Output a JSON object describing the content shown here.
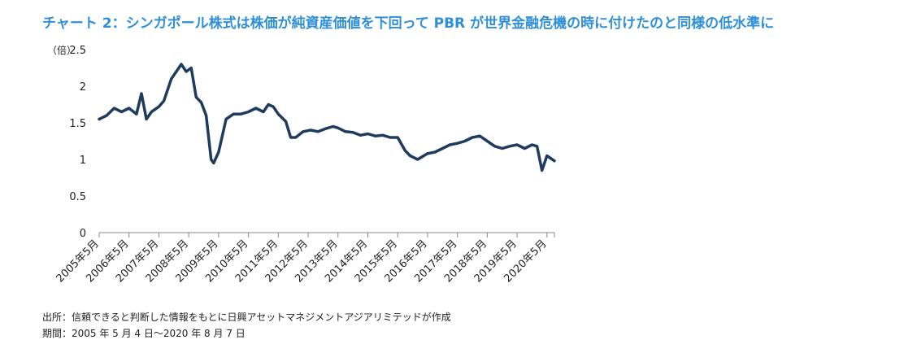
{
  "title": "チャート 2：シンガポール株式は株価が純資産価値を下回って PBR が世界金融危機の時に付けたのと同様の低水準に",
  "footer": {
    "source": "出所：信頼できると判断した情報をもとに日興アセットマネジメントアジアリミテッドが作成",
    "period": "期間：2005 年 5 月 4 日～2020 年 8 月 7 日"
  },
  "chart_data": {
    "type": "line",
    "title": "",
    "y_unit_label": "（倍）",
    "ylim": [
      0,
      2.5
    ],
    "y_ticks": [
      "0",
      "0.5",
      "1",
      "1.5",
      "2",
      "2.5"
    ],
    "x_ticks": [
      "2005年5月",
      "2006年5月",
      "2007年5月",
      "2008年5月",
      "2009年5月",
      "2010年5月",
      "2011年5月",
      "2012年5月",
      "2013年5月",
      "2014年5月",
      "2015年5月",
      "2016年5月",
      "2017年5月",
      "2018年5月",
      "2019年5月",
      "2020年5月"
    ],
    "line_color": "#1f3b5e",
    "series": [
      {
        "name": "",
        "x": [
          "2005-05",
          "2005-08",
          "2005-11",
          "2006-02",
          "2006-05",
          "2006-08",
          "2006-10",
          "2006-12",
          "2007-02",
          "2007-05",
          "2007-07",
          "2007-10",
          "2007-12",
          "2008-02",
          "2008-04",
          "2008-06",
          "2008-08",
          "2008-10",
          "2008-12",
          "2009-02",
          "2009-03",
          "2009-05",
          "2009-08",
          "2009-11",
          "2010-02",
          "2010-05",
          "2010-08",
          "2010-11",
          "2011-01",
          "2011-03",
          "2011-05",
          "2011-08",
          "2011-10",
          "2011-12",
          "2012-03",
          "2012-06",
          "2012-09",
          "2012-12",
          "2013-03",
          "2013-05",
          "2013-08",
          "2013-11",
          "2014-02",
          "2014-05",
          "2014-08",
          "2014-11",
          "2015-02",
          "2015-05",
          "2015-08",
          "2015-10",
          "2016-01",
          "2016-02",
          "2016-05",
          "2016-08",
          "2016-11",
          "2017-02",
          "2017-05",
          "2017-08",
          "2017-11",
          "2018-02",
          "2018-05",
          "2018-08",
          "2018-11",
          "2019-02",
          "2019-05",
          "2019-08",
          "2019-11",
          "2020-01",
          "2020-03",
          "2020-05",
          "2020-08"
        ],
        "values": [
          1.55,
          1.6,
          1.7,
          1.65,
          1.7,
          1.62,
          1.9,
          1.55,
          1.65,
          1.72,
          1.8,
          2.1,
          2.2,
          2.3,
          2.2,
          2.25,
          1.85,
          1.78,
          1.6,
          1.0,
          0.95,
          1.1,
          1.55,
          1.62,
          1.62,
          1.65,
          1.7,
          1.65,
          1.75,
          1.72,
          1.62,
          1.52,
          1.3,
          1.3,
          1.38,
          1.4,
          1.38,
          1.42,
          1.45,
          1.43,
          1.38,
          1.37,
          1.33,
          1.35,
          1.32,
          1.33,
          1.3,
          1.3,
          1.12,
          1.05,
          1.0,
          1.02,
          1.08,
          1.1,
          1.15,
          1.2,
          1.22,
          1.25,
          1.3,
          1.32,
          1.25,
          1.18,
          1.15,
          1.18,
          1.2,
          1.15,
          1.2,
          1.18,
          0.85,
          1.05,
          0.98
        ]
      }
    ]
  }
}
